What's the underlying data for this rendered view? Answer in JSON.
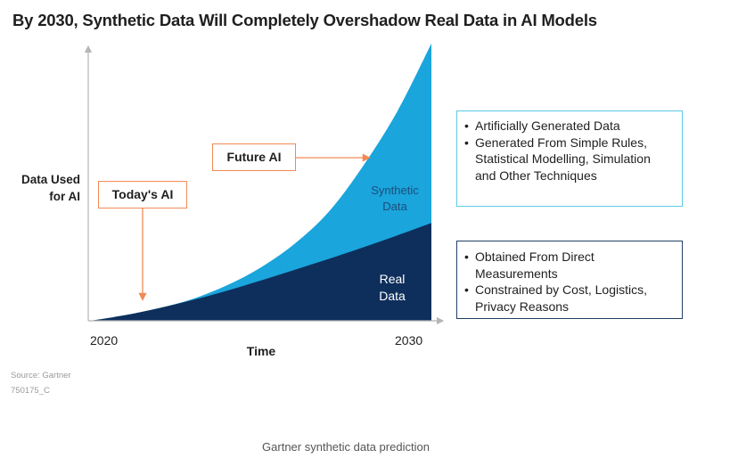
{
  "title": "By 2030,  Synthetic Data Will Completely Overshadow Real Data in AI Models",
  "caption": "Gartner synthetic data prediction",
  "source": {
    "line1": "Source: Gartner",
    "line2": "750175_C"
  },
  "colors": {
    "synthetic": "#1aa5dc",
    "real": "#0e2f5c",
    "callout_accent": "#f28a55",
    "synthetic_box_border": "#5ccbe6",
    "real_box_border": "#223f66",
    "axis": "#b5b5b5"
  },
  "chart_data": {
    "type": "area",
    "title": "By 2030,  Synthetic Data Will Completely Overshadow Real Data in AI Models",
    "xlabel": "Time",
    "ylabel_lines": [
      "Data Used",
      "for AI"
    ],
    "x_ticks": [
      "2020",
      "2030"
    ],
    "x": [
      2020,
      2021,
      2022,
      2023,
      2024,
      2025,
      2026,
      2027,
      2028,
      2029,
      2030
    ],
    "xlim": [
      2020,
      2030
    ],
    "ylim": [
      0,
      100
    ],
    "stacked": true,
    "series": [
      {
        "name": "Real Data",
        "label_lines": [
          "Real",
          "Data"
        ],
        "color": "#0e2f5c",
        "values": [
          0,
          2,
          4.6,
          7.6,
          11,
          14.8,
          18.8,
          22.8,
          27,
          31.4,
          36
        ]
      },
      {
        "name": "Synthetic Data",
        "label_lines": [
          "Synthetic",
          "Data"
        ],
        "color": "#1aa5dc",
        "values": [
          0,
          0,
          0,
          0.4,
          2,
          4.8,
          9.6,
          17.4,
          30,
          45.6,
          66
        ]
      }
    ],
    "annotations": [
      {
        "text": "Today's AI",
        "x": 2021.5
      },
      {
        "text": "Future AI",
        "x": 2028.5
      }
    ],
    "grid": false,
    "legend": "none"
  },
  "info_boxes": {
    "synthetic": {
      "items": [
        "Artificially Generated Data",
        "Generated From Simple Rules, Statistical Modelling, Simulation and Other Techniques"
      ]
    },
    "real": {
      "items": [
        "Obtained From Direct Measurements",
        "Constrained by Cost, Logistics, Privacy Reasons"
      ]
    }
  }
}
